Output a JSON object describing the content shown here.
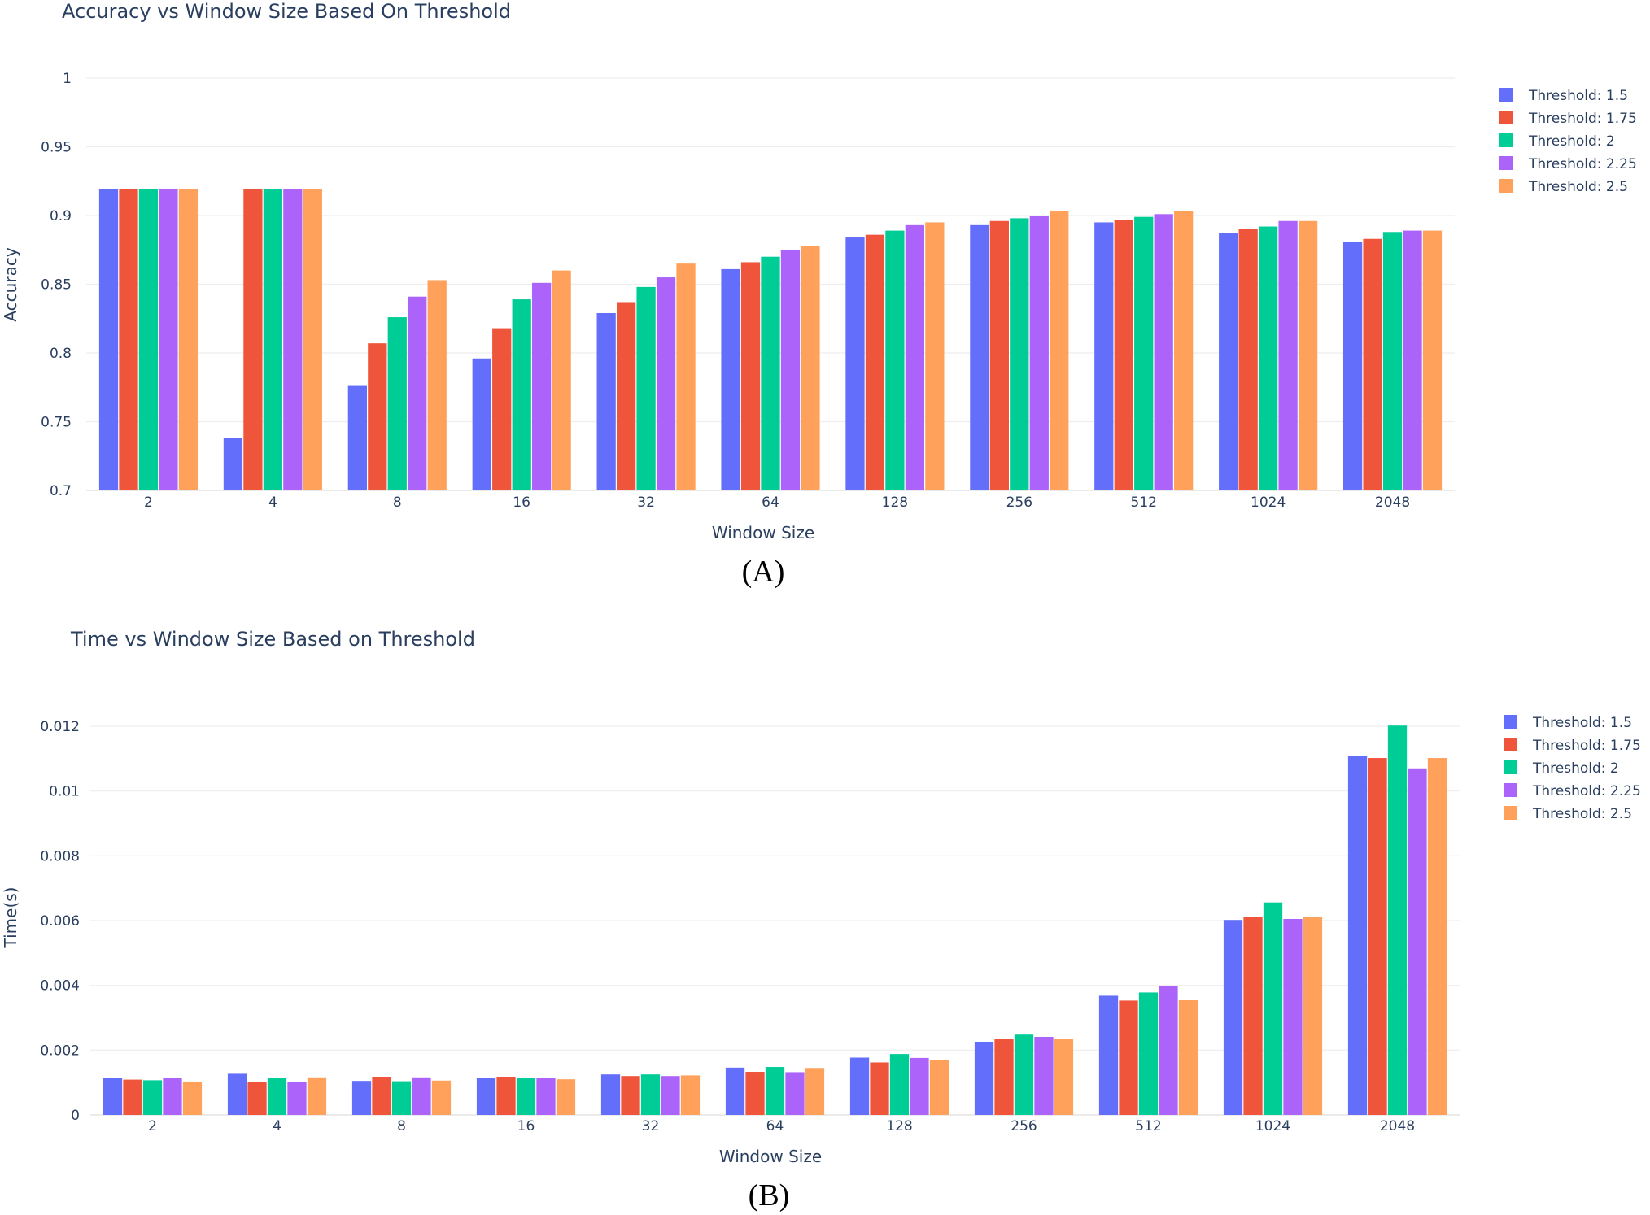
{
  "colors": [
    "#636efa",
    "#ef553b",
    "#00cc96",
    "#ab63fa",
    "#ffa15a"
  ],
  "chart_data": [
    {
      "type": "bar",
      "title": "Accuracy vs Window Size Based On Threshold",
      "xlabel": "Window Size",
      "ylabel": "Accuracy",
      "ylim": [
        0.7,
        1.0
      ],
      "yticks": [
        "0.7",
        "0.75",
        "0.8",
        "0.85",
        "0.9",
        "0.95",
        "1"
      ],
      "ytick_values": [
        0.7,
        0.75,
        0.8,
        0.85,
        0.9,
        0.95,
        1.0
      ],
      "categories": [
        "2",
        "4",
        "8",
        "16",
        "32",
        "64",
        "128",
        "256",
        "512",
        "1024",
        "2048"
      ],
      "caption": "(A)",
      "legend_position": "top-right",
      "series": [
        {
          "name": "Threshold: 1.5",
          "values": [
            0.919,
            0.738,
            0.776,
            0.796,
            0.829,
            0.861,
            0.884,
            0.893,
            0.895,
            0.887,
            0.881
          ]
        },
        {
          "name": "Threshold: 1.75",
          "values": [
            0.919,
            0.919,
            0.807,
            0.818,
            0.837,
            0.866,
            0.886,
            0.896,
            0.897,
            0.89,
            0.883
          ]
        },
        {
          "name": "Threshold: 2",
          "values": [
            0.919,
            0.919,
            0.826,
            0.839,
            0.848,
            0.87,
            0.889,
            0.898,
            0.899,
            0.892,
            0.888
          ]
        },
        {
          "name": "Threshold: 2.25",
          "values": [
            0.919,
            0.919,
            0.841,
            0.851,
            0.855,
            0.875,
            0.893,
            0.9,
            0.901,
            0.896,
            0.889
          ]
        },
        {
          "name": "Threshold: 2.5",
          "values": [
            0.919,
            0.919,
            0.853,
            0.86,
            0.865,
            0.878,
            0.895,
            0.903,
            0.903,
            0.896,
            0.889
          ]
        }
      ]
    },
    {
      "type": "bar",
      "title": "Time vs Window Size Based on Threshold",
      "xlabel": "Window Size",
      "ylabel": "Time(s)",
      "ylim": [
        0,
        0.012
      ],
      "yticks": [
        "0",
        "0.002",
        "0.004",
        "0.006",
        "0.008",
        "0.01",
        "0.012"
      ],
      "ytick_values": [
        0,
        0.002,
        0.004,
        0.006,
        0.008,
        0.01,
        0.012
      ],
      "categories": [
        "2",
        "4",
        "8",
        "16",
        "32",
        "64",
        "128",
        "256",
        "512",
        "1024",
        "2048"
      ],
      "caption": "(B)",
      "legend_position": "top-right",
      "series": [
        {
          "name": "Threshold: 1.5",
          "values": [
            0.00115,
            0.00127,
            0.00105,
            0.00115,
            0.00125,
            0.00146,
            0.00177,
            0.00226,
            0.00368,
            0.00602,
            0.01108
          ]
        },
        {
          "name": "Threshold: 1.75",
          "values": [
            0.00109,
            0.00102,
            0.00118,
            0.00118,
            0.0012,
            0.00133,
            0.00162,
            0.00235,
            0.00353,
            0.00612,
            0.01102
          ]
        },
        {
          "name": "Threshold: 2",
          "values": [
            0.00107,
            0.00115,
            0.00104,
            0.00113,
            0.00125,
            0.00148,
            0.00188,
            0.00248,
            0.00378,
            0.00656,
            0.01202
          ]
        },
        {
          "name": "Threshold: 2.25",
          "values": [
            0.00113,
            0.00102,
            0.00116,
            0.00113,
            0.0012,
            0.00132,
            0.00176,
            0.00241,
            0.00397,
            0.00605,
            0.0107
          ]
        },
        {
          "name": "Threshold: 2.5",
          "values": [
            0.00103,
            0.00116,
            0.00106,
            0.0011,
            0.00122,
            0.00145,
            0.0017,
            0.00234,
            0.00354,
            0.0061,
            0.01102
          ]
        }
      ]
    }
  ]
}
